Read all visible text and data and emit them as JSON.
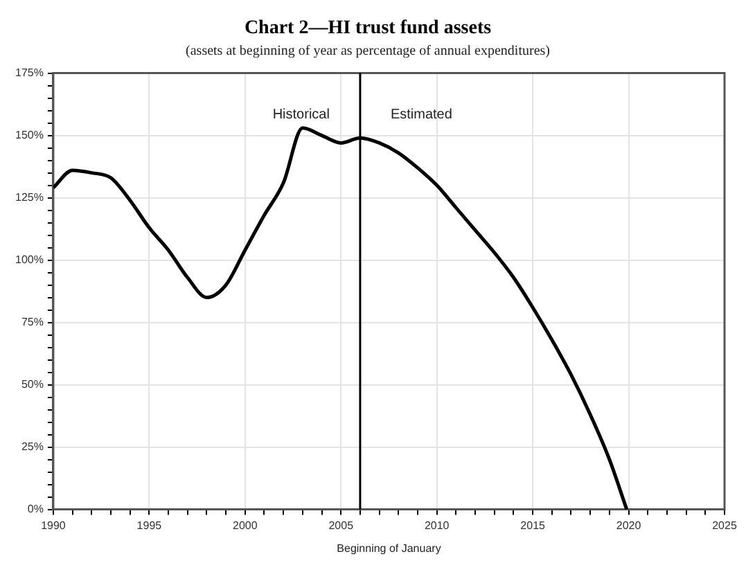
{
  "chart_data": {
    "type": "line",
    "title": "Chart 2—HI trust fund assets",
    "subtitle": "(assets at beginning of year as percentage of annual expenditures)",
    "xlabel": "Beginning of January",
    "x": [
      1990,
      1991,
      1992,
      1993,
      1994,
      1995,
      1996,
      1997,
      1998,
      1999,
      2000,
      2001,
      2002,
      2003,
      2004,
      2005,
      2006,
      2007,
      2008,
      2009,
      2010,
      2011,
      2012,
      2013,
      2014,
      2015,
      2016,
      2017,
      2018,
      2019,
      2019.9
    ],
    "series": [
      {
        "color": "#000000",
        "values": [
          129,
          136,
          135,
          133,
          124,
          113,
          104,
          93,
          85,
          90,
          104,
          118,
          131,
          153,
          150,
          147,
          149,
          147,
          143,
          137,
          130,
          121,
          112,
          103,
          93,
          81,
          68,
          54,
          38,
          20,
          0
        ]
      }
    ],
    "xlim": [
      1990,
      2025
    ],
    "xticks": [
      1990,
      {
        "value": 1991,
        "label": null
      },
      {
        "value": 1992,
        "label": null
      },
      {
        "value": 1993,
        "label": null
      },
      {
        "value": 1994,
        "label": null
      },
      1995,
      {
        "value": 1996,
        "label": null
      },
      {
        "value": 1997,
        "label": null
      },
      {
        "value": 1998,
        "label": null
      },
      {
        "value": 1999,
        "label": null
      },
      2000,
      {
        "value": 2001,
        "label": null
      },
      {
        "value": 2002,
        "label": null
      },
      {
        "value": 2003,
        "label": null
      },
      {
        "value": 2004,
        "label": null
      },
      2005,
      {
        "value": 2006,
        "label": null
      },
      {
        "value": 2007,
        "label": null
      },
      {
        "value": 2008,
        "label": null
      },
      {
        "value": 2009,
        "label": null
      },
      2010,
      {
        "value": 2011,
        "label": null
      },
      {
        "value": 2012,
        "label": null
      },
      {
        "value": 2013,
        "label": null
      },
      {
        "value": 2014,
        "label": null
      },
      2015,
      {
        "value": 2016,
        "label": null
      },
      {
        "value": 2017,
        "label": null
      },
      {
        "value": 2018,
        "label": null
      },
      {
        "value": 2019,
        "label": null
      },
      2020,
      {
        "value": 2021,
        "label": null
      },
      {
        "value": 2022,
        "label": null
      },
      {
        "value": 2023,
        "label": null
      },
      {
        "value": 2024,
        "label": null
      },
      2025
    ],
    "ylim": [
      0,
      175
    ],
    "yticks": [
      {
        "value": 0,
        "label": "0%"
      },
      {
        "value": 5,
        "label": null
      },
      {
        "value": 10,
        "label": null
      },
      {
        "value": 15,
        "label": null
      },
      {
        "value": 20,
        "label": null
      },
      {
        "value": 25,
        "label": "25%"
      },
      {
        "value": 30,
        "label": null
      },
      {
        "value": 35,
        "label": null
      },
      {
        "value": 40,
        "label": null
      },
      {
        "value": 45,
        "label": null
      },
      {
        "value": 50,
        "label": "50%"
      },
      {
        "value": 55,
        "label": null
      },
      {
        "value": 60,
        "label": null
      },
      {
        "value": 65,
        "label": null
      },
      {
        "value": 70,
        "label": null
      },
      {
        "value": 75,
        "label": "75%"
      },
      {
        "value": 80,
        "label": null
      },
      {
        "value": 85,
        "label": null
      },
      {
        "value": 90,
        "label": null
      },
      {
        "value": 95,
        "label": null
      },
      {
        "value": 100,
        "label": "100%"
      },
      {
        "value": 105,
        "label": null
      },
      {
        "value": 110,
        "label": null
      },
      {
        "value": 115,
        "label": null
      },
      {
        "value": 120,
        "label": null
      },
      {
        "value": 125,
        "label": "125%"
      },
      {
        "value": 130,
        "label": null
      },
      {
        "value": 135,
        "label": null
      },
      {
        "value": 140,
        "label": null
      },
      {
        "value": 145,
        "label": null
      },
      {
        "value": 150,
        "label": "150%"
      },
      {
        "value": 155,
        "label": null
      },
      {
        "value": 160,
        "label": null
      },
      {
        "value": 165,
        "label": null
      },
      {
        "value": 170,
        "label": null
      },
      {
        "value": 175,
        "label": "175%"
      }
    ],
    "ref_lines": [
      {
        "axis": "x",
        "value": 2006,
        "color": "#000000"
      }
    ],
    "annotations": [
      "Historical",
      "Estimated"
    ],
    "grid": true,
    "legend": false,
    "marker": "none",
    "line_style": "solid"
  }
}
